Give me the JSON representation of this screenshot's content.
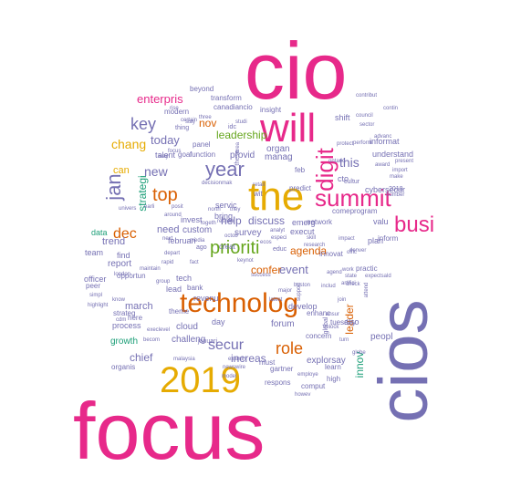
{
  "palette": {
    "pink": "#e7298a",
    "purple": "#7570b3",
    "orange": "#d95f02",
    "gold": "#e6ab02",
    "green": "#66a61e",
    "teal": "#1b9e77",
    "brown": "#a6761d",
    "gray": "#666666"
  },
  "words": [
    {
      "text": "cio",
      "color": "pink",
      "size": 88
    },
    {
      "text": "cios",
      "color": "purple",
      "size": 76,
      "rotate": -90
    },
    {
      "text": "focus",
      "color": "pink",
      "size": 88
    },
    {
      "text": "will",
      "color": "pink",
      "size": 44
    },
    {
      "text": "the",
      "color": "gold",
      "size": 44
    },
    {
      "text": "technolog",
      "color": "orange",
      "size": 30
    },
    {
      "text": "2019",
      "color": "gold",
      "size": 40
    },
    {
      "text": "summit",
      "color": "pink",
      "size": 26
    },
    {
      "text": "digit",
      "color": "pink",
      "size": 26,
      "rotate": -90
    },
    {
      "text": "busi",
      "color": "pink",
      "size": 24
    },
    {
      "text": "year",
      "color": "purple",
      "size": 22
    },
    {
      "text": "jan",
      "color": "purple",
      "size": 22,
      "rotate": -90
    },
    {
      "text": "top",
      "color": "orange",
      "size": 20
    },
    {
      "text": "prioriti",
      "color": "green",
      "size": 20
    },
    {
      "text": "role",
      "color": "orange",
      "size": 18
    },
    {
      "text": "key",
      "color": "purple",
      "size": 18
    },
    {
      "text": "dec",
      "color": "orange",
      "size": 16
    },
    {
      "text": "secur",
      "color": "purple",
      "size": 16
    },
    {
      "text": "chang",
      "color": "gold",
      "size": 14
    },
    {
      "text": "new",
      "color": "purple",
      "size": 14
    },
    {
      "text": "today",
      "color": "purple",
      "size": 13
    },
    {
      "text": "enterpris",
      "color": "pink",
      "size": 13
    },
    {
      "text": "event",
      "color": "purple",
      "size": 13
    },
    {
      "text": "leadership",
      "color": "green",
      "size": 12
    },
    {
      "text": "nov",
      "color": "orange",
      "size": 12
    },
    {
      "text": "discuss",
      "color": "purple",
      "size": 12
    },
    {
      "text": "this",
      "color": "purple",
      "size": 14
    },
    {
      "text": "help",
      "color": "purple",
      "size": 12
    },
    {
      "text": "agenda",
      "color": "orange",
      "size": 12
    },
    {
      "text": "confer",
      "color": "orange",
      "size": 12
    },
    {
      "text": "increas",
      "color": "purple",
      "size": 12
    },
    {
      "text": "chief",
      "color": "purple",
      "size": 12
    },
    {
      "text": "innov",
      "color": "teal",
      "size": 12,
      "rotate": -90
    },
    {
      "text": "leader",
      "color": "orange",
      "size": 12,
      "rotate": -90
    },
    {
      "text": "strategi",
      "color": "teal",
      "size": 12,
      "rotate": -90
    },
    {
      "text": "march",
      "color": "purple",
      "size": 11
    },
    {
      "text": "need",
      "color": "purple",
      "size": 11
    },
    {
      "text": "can",
      "color": "gold",
      "size": 11
    },
    {
      "text": "trend",
      "color": "purple",
      "size": 11
    },
    {
      "text": "report",
      "color": "purple",
      "size": 10
    },
    {
      "text": "manag",
      "color": "purple",
      "size": 10
    },
    {
      "text": "organ",
      "color": "purple",
      "size": 10
    },
    {
      "text": "provid",
      "color": "purple",
      "size": 10
    },
    {
      "text": "survey",
      "color": "purple",
      "size": 10
    },
    {
      "text": "custom",
      "color": "purple",
      "size": 10
    },
    {
      "text": "forum",
      "color": "purple",
      "size": 10
    },
    {
      "text": "peopl",
      "color": "purple",
      "size": 10
    },
    {
      "text": "explorsay",
      "color": "purple",
      "size": 10
    },
    {
      "text": "challeng",
      "color": "purple",
      "size": 10
    },
    {
      "text": "growth",
      "color": "teal",
      "size": 10
    },
    {
      "text": "cloud",
      "color": "purple",
      "size": 10
    },
    {
      "text": "day",
      "color": "purple",
      "size": 9
    },
    {
      "text": "lead",
      "color": "purple",
      "size": 9
    },
    {
      "text": "revenu",
      "color": "purple",
      "size": 9
    },
    {
      "text": "tech",
      "color": "purple",
      "size": 9
    },
    {
      "text": "find",
      "color": "purple",
      "size": 9
    },
    {
      "text": "team",
      "color": "purple",
      "size": 9
    },
    {
      "text": "data",
      "color": "teal",
      "size": 9
    },
    {
      "text": "bring",
      "color": "purple",
      "size": 9
    },
    {
      "text": "invest",
      "color": "purple",
      "size": 9
    },
    {
      "text": "februari",
      "color": "purple",
      "size": 9
    },
    {
      "text": "talent",
      "color": "purple",
      "size": 9
    },
    {
      "text": "servic",
      "color": "purple",
      "size": 9
    },
    {
      "text": "develop",
      "color": "purple",
      "size": 9
    },
    {
      "text": "execut",
      "color": "purple",
      "size": 9
    },
    {
      "text": "emerg",
      "color": "purple",
      "size": 9
    },
    {
      "text": "cto",
      "color": "purple",
      "size": 9
    },
    {
      "text": "feb",
      "color": "purple",
      "size": 8
    },
    {
      "text": "valu",
      "color": "purple",
      "size": 9
    },
    {
      "text": "informat",
      "color": "purple",
      "size": 9
    },
    {
      "text": "shift",
      "color": "purple",
      "size": 9
    },
    {
      "text": "understand",
      "color": "purple",
      "size": 9
    },
    {
      "text": "cybersecur",
      "color": "purple",
      "size": 9
    },
    {
      "text": "plan",
      "color": "purple",
      "size": 9
    },
    {
      "text": "inform",
      "color": "purple",
      "size": 8
    },
    {
      "text": "practic",
      "color": "purple",
      "size": 8
    },
    {
      "text": "innovat",
      "color": "purple",
      "size": 8
    },
    {
      "text": "network",
      "color": "purple",
      "size": 8
    },
    {
      "text": "comeprogram",
      "color": "purple",
      "size": 8
    },
    {
      "text": "tuesday",
      "color": "purple",
      "size": 8
    },
    {
      "text": "learn",
      "color": "purple",
      "size": 8
    },
    {
      "text": "comput",
      "color": "purple",
      "size": 8
    },
    {
      "text": "respons",
      "color": "purple",
      "size": 8
    },
    {
      "text": "gartner",
      "color": "purple",
      "size": 8
    },
    {
      "text": "must",
      "color": "purple",
      "size": 8
    },
    {
      "text": "enhanc",
      "color": "purple",
      "size": 8
    },
    {
      "text": "concern",
      "color": "purple",
      "size": 8
    },
    {
      "text": "also",
      "color": "purple",
      "size": 9
    },
    {
      "text": "high",
      "color": "purple",
      "size": 8
    },
    {
      "text": "process",
      "color": "purple",
      "size": 9
    },
    {
      "text": "organis",
      "color": "purple",
      "size": 8
    },
    {
      "text": "strateg",
      "color": "purple",
      "size": 8
    },
    {
      "text": "officer",
      "color": "purple",
      "size": 9
    },
    {
      "text": "opportun",
      "color": "purple",
      "size": 8
    },
    {
      "text": "peer",
      "color": "purple",
      "size": 8
    },
    {
      "text": "here",
      "color": "purple",
      "size": 8
    },
    {
      "text": "theme",
      "color": "purple",
      "size": 8
    },
    {
      "text": "bank",
      "color": "purple",
      "size": 8
    },
    {
      "text": "panel",
      "color": "purple",
      "size": 8
    },
    {
      "text": "goal",
      "color": "purple",
      "size": 8
    },
    {
      "text": "function",
      "color": "purple",
      "size": 8
    },
    {
      "text": "modern",
      "color": "purple",
      "size": 8
    },
    {
      "text": "canadiancio",
      "color": "purple",
      "size": 8
    },
    {
      "text": "insight",
      "color": "purple",
      "size": 8
    },
    {
      "text": "transform",
      "color": "purple",
      "size": 8
    },
    {
      "text": "beyond",
      "color": "purple",
      "size": 8
    },
    {
      "text": "thing",
      "color": "purple",
      "size": 7
    },
    {
      "text": "certain",
      "color": "purple",
      "size": 6
    },
    {
      "text": "three",
      "color": "purple",
      "size": 6
    },
    {
      "text": "idc",
      "color": "purple",
      "size": 7
    },
    {
      "text": "wit",
      "color": "purple",
      "size": 8
    },
    {
      "text": "predict",
      "color": "purple",
      "size": 8
    },
    {
      "text": "cultur",
      "color": "purple",
      "size": 7
    },
    {
      "text": "2018",
      "color": "purple",
      "size": 7
    },
    {
      "text": "award",
      "color": "purple",
      "size": 6
    },
    {
      "text": "make",
      "color": "purple",
      "size": 6
    },
    {
      "text": "number",
      "color": "purple",
      "size": 6
    },
    {
      "text": "import",
      "color": "purple",
      "size": 6
    },
    {
      "text": "present",
      "color": "purple",
      "size": 6
    },
    {
      "text": "sector",
      "color": "purple",
      "size": 6
    },
    {
      "text": "council",
      "color": "purple",
      "size": 6
    },
    {
      "text": "protect",
      "color": "purple",
      "size": 6
    },
    {
      "text": "perform",
      "color": "purple",
      "size": 6
    },
    {
      "text": "contribut",
      "color": "purple",
      "size": 6
    },
    {
      "text": "advanc",
      "color": "purple",
      "size": 6
    },
    {
      "text": "contin",
      "color": "purple",
      "size": 6
    },
    {
      "text": "ontario",
      "color": "purple",
      "size": 6
    },
    {
      "text": "way",
      "color": "purple",
      "size": 6
    },
    {
      "text": "focus",
      "color": "purple",
      "size": 6
    },
    {
      "text": "studi",
      "color": "purple",
      "size": 6
    },
    {
      "text": "stay",
      "color": "purple",
      "size": 6
    },
    {
      "text": "rise",
      "color": "purple",
      "size": 6
    },
    {
      "text": "area",
      "color": "purple",
      "size": 6,
      "rotate": -90
    },
    {
      "text": "these",
      "color": "purple",
      "size": 7,
      "rotate": -90
    },
    {
      "text": "decisionmak",
      "color": "purple",
      "size": 6
    },
    {
      "text": "retail",
      "color": "purple",
      "size": 6
    },
    {
      "text": "they",
      "color": "purple",
      "size": 6
    },
    {
      "text": "north",
      "color": "purple",
      "size": 6
    },
    {
      "text": "posit",
      "color": "purple",
      "size": 6
    },
    {
      "text": "earli",
      "color": "purple",
      "size": 6
    },
    {
      "text": "around",
      "color": "purple",
      "size": 6
    },
    {
      "text": "univers",
      "color": "purple",
      "size": 6
    },
    {
      "text": "next",
      "color": "purple",
      "size": 6
    },
    {
      "text": "media",
      "color": "purple",
      "size": 6
    },
    {
      "text": "togeth",
      "color": "purple",
      "size": 6
    },
    {
      "text": "reshap",
      "color": "purple",
      "size": 6
    },
    {
      "text": "octob",
      "color": "purple",
      "size": 6
    },
    {
      "text": "analyt",
      "color": "purple",
      "size": 6
    },
    {
      "text": "especi",
      "color": "purple",
      "size": 6
    },
    {
      "text": "skill",
      "color": "purple",
      "size": 6
    },
    {
      "text": "research",
      "color": "purple",
      "size": 6
    },
    {
      "text": "educ",
      "color": "purple",
      "size": 7
    },
    {
      "text": "ago",
      "color": "purple",
      "size": 7
    },
    {
      "text": "creat",
      "color": "purple",
      "size": 8
    },
    {
      "text": "keynot",
      "color": "purple",
      "size": 6
    },
    {
      "text": "london",
      "color": "purple",
      "size": 6
    },
    {
      "text": "depart",
      "color": "purple",
      "size": 6
    },
    {
      "text": "rapid",
      "color": "purple",
      "size": 6
    },
    {
      "text": "fact",
      "color": "purple",
      "size": 6
    },
    {
      "text": "group",
      "color": "purple",
      "size": 6
    },
    {
      "text": "maintain",
      "color": "purple",
      "size": 6
    },
    {
      "text": "highlight",
      "color": "purple",
      "size": 6
    },
    {
      "text": "simpl",
      "color": "purple",
      "size": 6
    },
    {
      "text": "cdm",
      "color": "purple",
      "size": 6
    },
    {
      "text": "know",
      "color": "purple",
      "size": 6
    },
    {
      "text": "becom",
      "color": "purple",
      "size": 6
    },
    {
      "text": "execlevel",
      "color": "purple",
      "size": 6
    },
    {
      "text": "malaysia",
      "color": "purple",
      "size": 6
    },
    {
      "text": "januari",
      "color": "purple",
      "size": 7
    },
    {
      "text": "model",
      "color": "purple",
      "size": 6
    },
    {
      "text": "examin",
      "color": "purple",
      "size": 6
    },
    {
      "text": "newswire",
      "color": "purple",
      "size": 6
    },
    {
      "text": "employe",
      "color": "purple",
      "size": 6
    },
    {
      "text": "howev",
      "color": "purple",
      "size": 6
    },
    {
      "text": "boston",
      "color": "purple",
      "size": 6
    },
    {
      "text": "ansur",
      "color": "purple",
      "size": 6
    },
    {
      "text": "global",
      "color": "purple",
      "size": 7,
      "rotate": -90
    },
    {
      "text": "unlock",
      "color": "purple",
      "size": 6
    },
    {
      "text": "globe",
      "color": "purple",
      "size": 6
    },
    {
      "text": "join",
      "color": "purple",
      "size": 6
    },
    {
      "text": "turn",
      "color": "purple",
      "size": 6
    },
    {
      "text": "artifici",
      "color": "purple",
      "size": 6
    },
    {
      "text": "latest",
      "color": "purple",
      "size": 6
    },
    {
      "text": "major",
      "color": "purple",
      "size": 6
    },
    {
      "text": "success",
      "color": "purple",
      "size": 6
    },
    {
      "text": "support",
      "color": "purple",
      "size": 6,
      "rotate": -90
    },
    {
      "text": "includ",
      "color": "purple",
      "size": 6
    },
    {
      "text": "state",
      "color": "purple",
      "size": 6
    },
    {
      "text": "check",
      "color": "purple",
      "size": 6
    },
    {
      "text": "offic",
      "color": "purple",
      "size": 6
    },
    {
      "text": "denver",
      "color": "purple",
      "size": 6
    },
    {
      "text": "impact",
      "color": "purple",
      "size": 6
    },
    {
      "text": "expectsald",
      "color": "purple",
      "size": 6
    },
    {
      "text": "attend",
      "color": "purple",
      "size": 6,
      "rotate": -90
    },
    {
      "text": "work",
      "color": "purple",
      "size": 6
    },
    {
      "text": "agend",
      "color": "purple",
      "size": 6
    },
    {
      "text": "ecos",
      "color": "purple",
      "size": 6
    }
  ]
}
